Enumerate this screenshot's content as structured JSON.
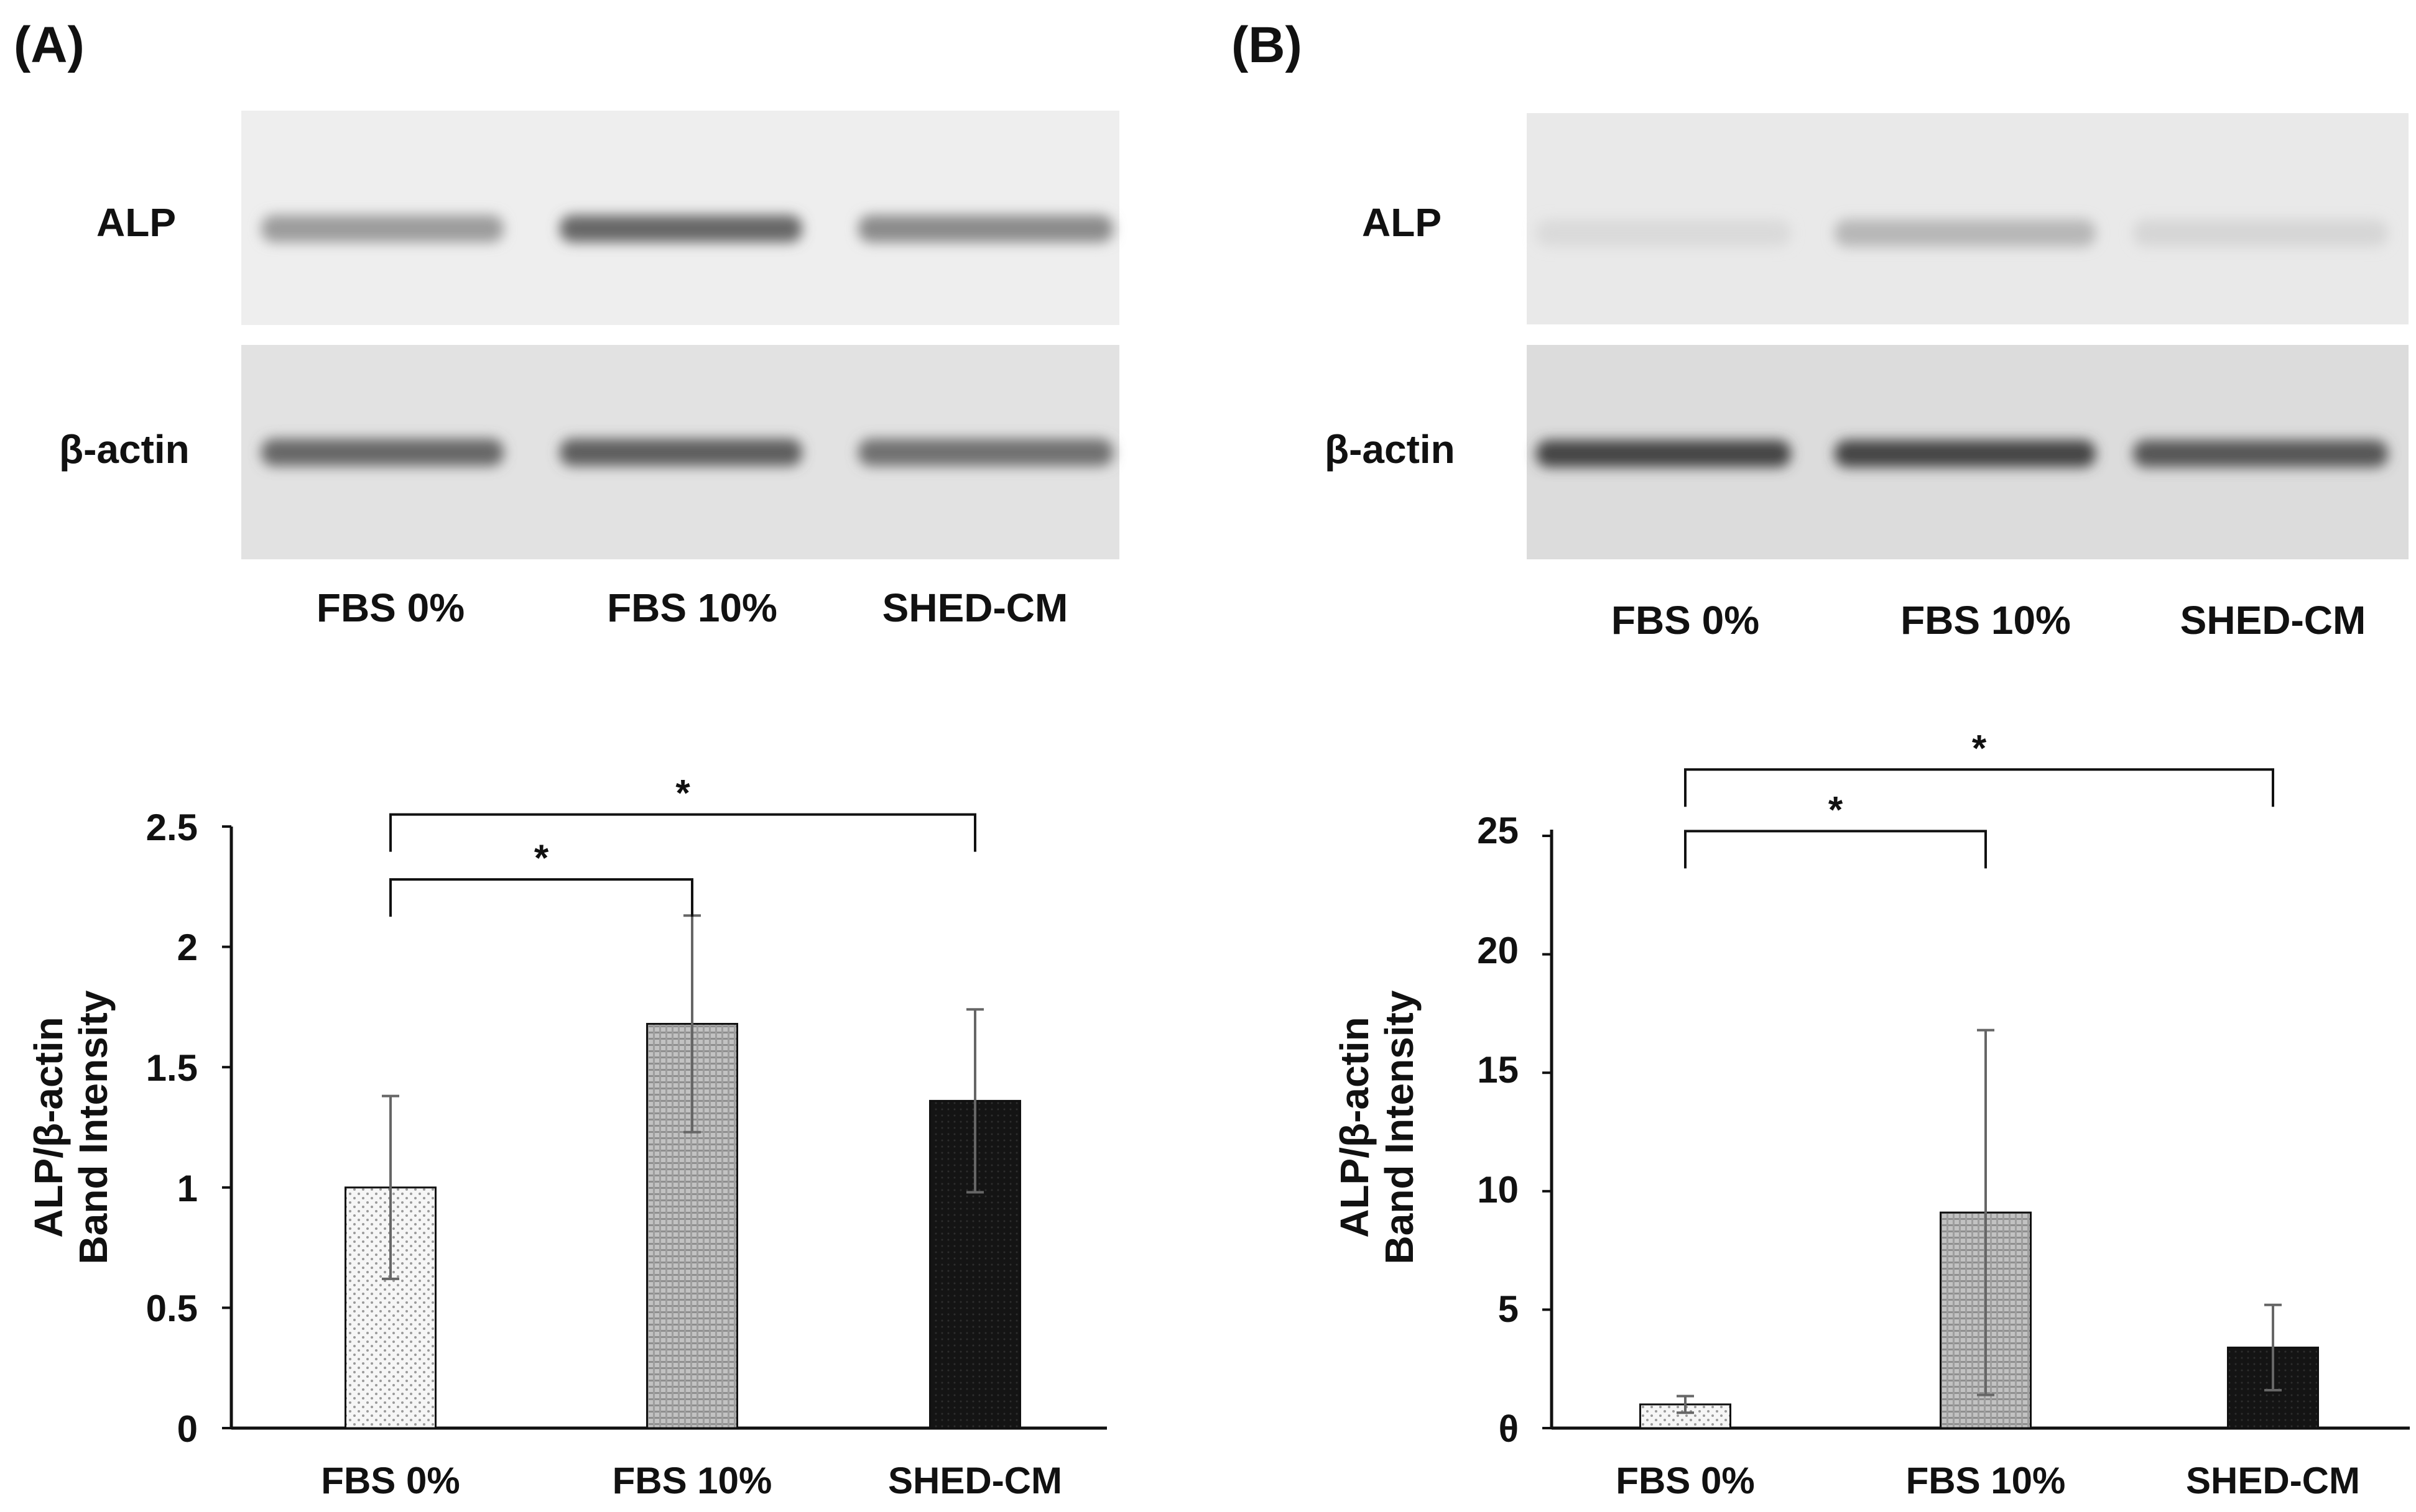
{
  "panels": [
    {
      "id": "A",
      "panel_label": "(A)",
      "blot": {
        "rows": [
          {
            "protein": "ALP",
            "band_intensities": [
              0.45,
              0.75,
              0.55
            ]
          },
          {
            "protein": "β-actin",
            "band_intensities": [
              0.75,
              0.8,
              0.7
            ]
          }
        ],
        "lanes": [
          "FBS 0%",
          "FBS 10%",
          "SHED-CM"
        ]
      },
      "chart_data": {
        "type": "bar",
        "categories": [
          "FBS 0%",
          "FBS 10%",
          "SHED-CM"
        ],
        "series": [
          {
            "values": [
              1.0,
              1.68,
              1.36
            ],
            "errors": [
              0.38,
              0.45,
              0.38
            ]
          }
        ],
        "ylabel": [
          "ALP/β-actin",
          "Band Intensity"
        ],
        "ylim": [
          0,
          2.5
        ],
        "yticks": [
          0,
          0.5,
          1,
          1.5,
          2,
          2.5
        ],
        "ytick_labels": [
          "0",
          "0.5",
          "1",
          "1.5",
          "2",
          "2.5"
        ],
        "significance": [
          {
            "from": 0,
            "to": 1,
            "label": "*",
            "level": 2.28
          },
          {
            "from": 0,
            "to": 2,
            "label": "*",
            "level": 2.55
          }
        ],
        "bar_styles": [
          "dotted-light",
          "hatched-gray",
          "dark"
        ],
        "grid": false
      }
    },
    {
      "id": "B",
      "panel_label": "(B)",
      "blot": {
        "rows": [
          {
            "protein": "ALP",
            "band_intensities": [
              0.1,
              0.3,
              0.12
            ]
          },
          {
            "protein": "β-actin",
            "band_intensities": [
              0.95,
              0.95,
              0.85
            ]
          }
        ],
        "lanes": [
          "FBS 0%",
          "FBS 10%",
          "SHED-CM"
        ]
      },
      "chart_data": {
        "type": "bar",
        "categories": [
          "FBS 0%",
          "FBS 10%",
          "SHED-CM"
        ],
        "series": [
          {
            "values": [
              1.0,
              9.1,
              3.4
            ],
            "errors": [
              0.35,
              7.7,
              1.8
            ]
          }
        ],
        "ylabel": [
          "ALP/β-actin",
          "Band Intensity"
        ],
        "ylim": [
          0,
          25
        ],
        "yticks": [
          0,
          5,
          10,
          15,
          20,
          25
        ],
        "ytick_labels": [
          "θ",
          "5",
          "10",
          "15",
          "20",
          "25"
        ],
        "significance": [
          {
            "from": 0,
            "to": 1,
            "label": "*",
            "level": 25.2
          },
          {
            "from": 0,
            "to": 2,
            "label": "*",
            "level": 27.8
          }
        ],
        "bar_styles": [
          "dotted-light",
          "hatched-gray",
          "dark"
        ],
        "grid": false
      }
    }
  ],
  "colors": {
    "bar_dark": "#141414",
    "bar_gray": "#b8b8b8",
    "bar_light": "#f2f2f2",
    "axis": "#111111",
    "error": "#666666",
    "blot_bg_top": "#eeeeee",
    "blot_bg_bottom": "#e2e2e2"
  }
}
